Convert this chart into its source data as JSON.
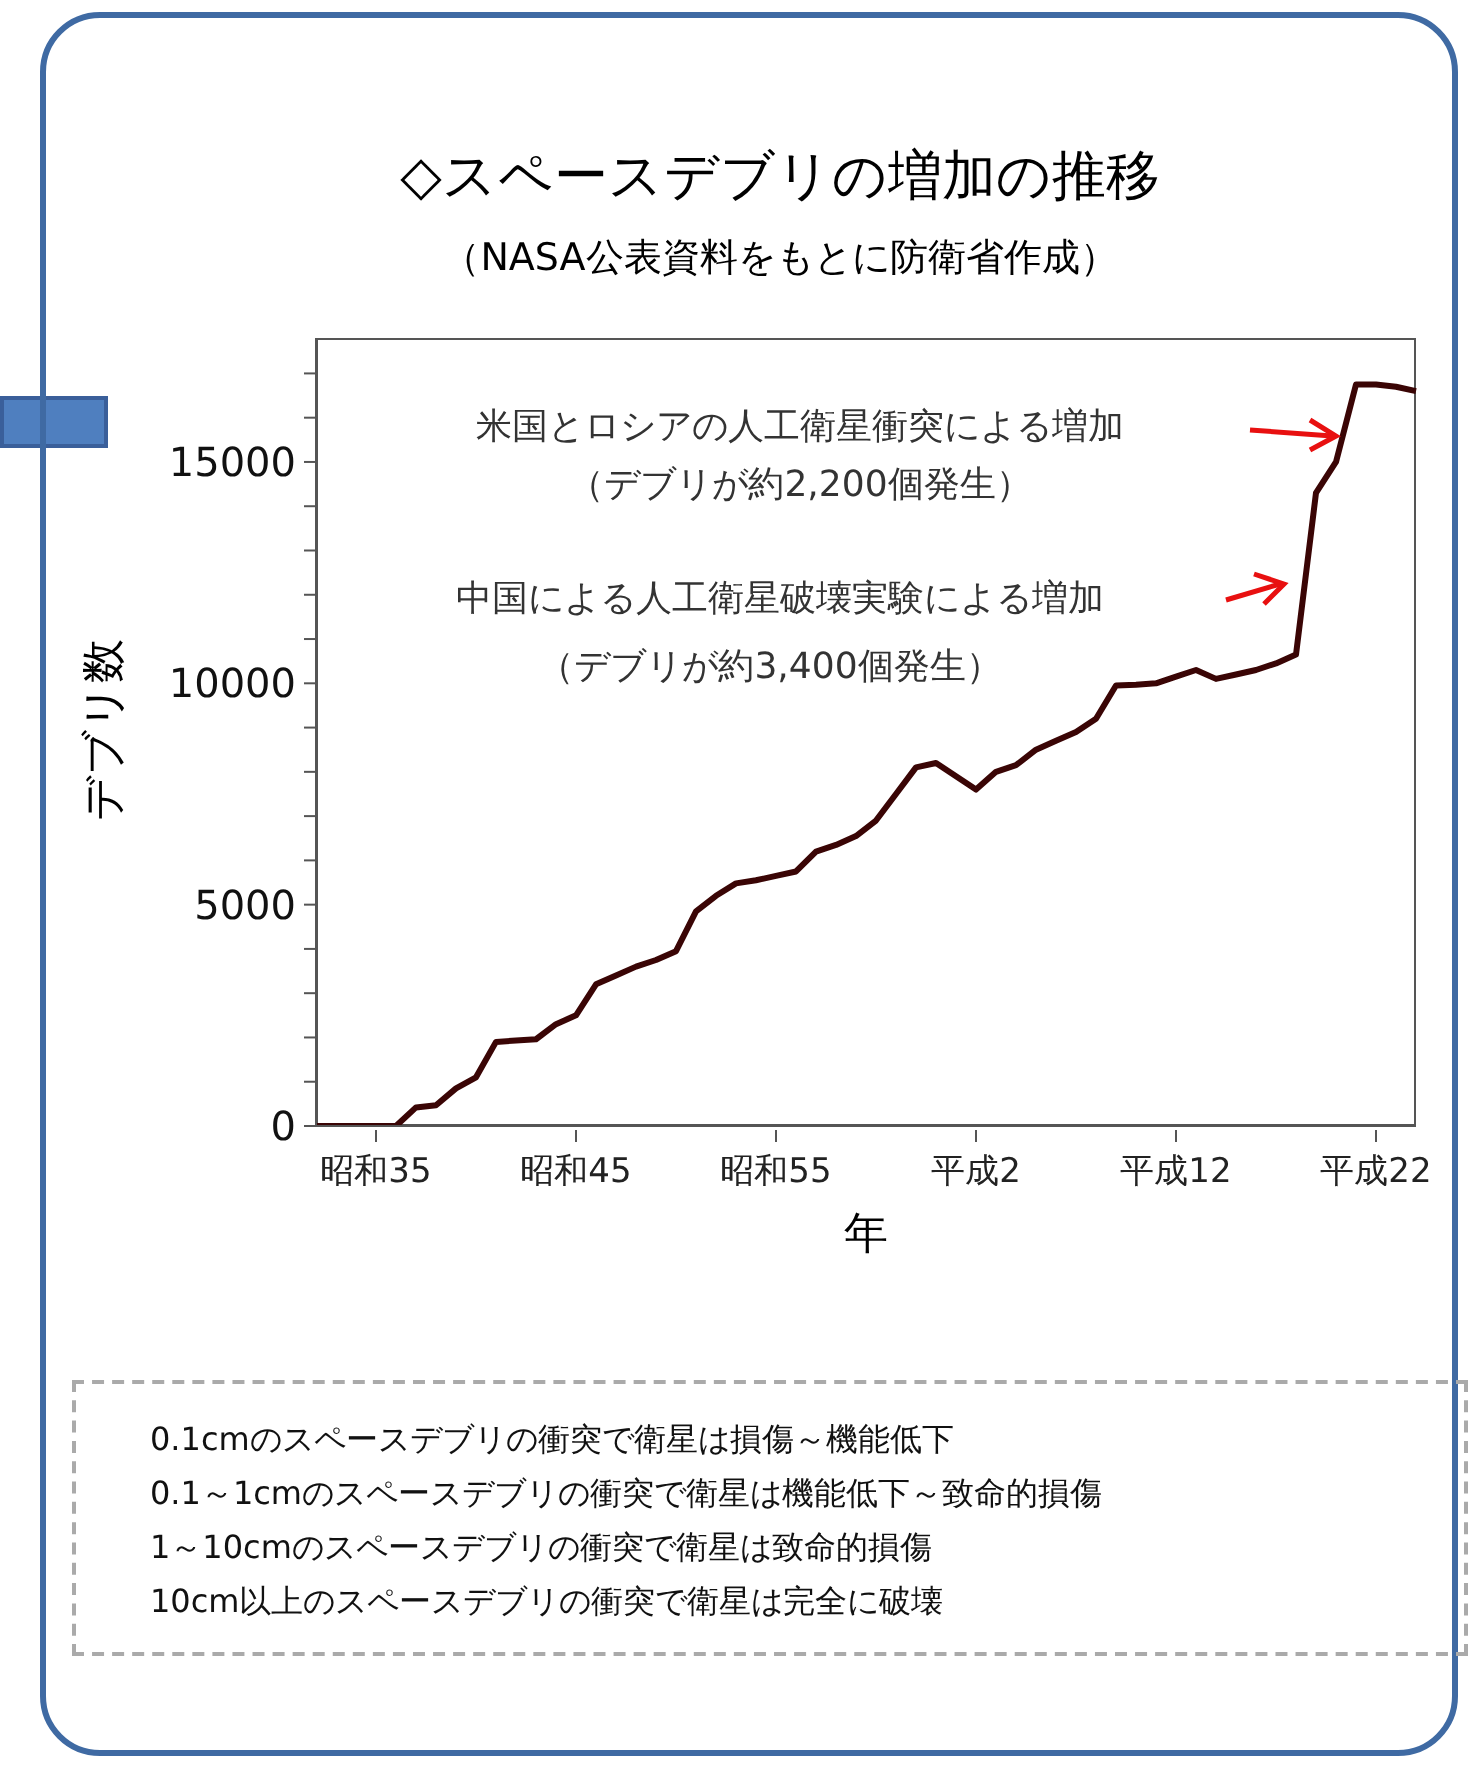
{
  "chart_data": {
    "type": "line",
    "title": "◇スペースデブリの増加の推移",
    "subtitle": "（NASA公表資料をもとに防衛省作成）",
    "xlabel": "年",
    "ylabel": "デブリ数",
    "categories": [
      null,
      null,
      null,
      "昭和35",
      null,
      null,
      null,
      null,
      null,
      null,
      null,
      null,
      null,
      "昭和45",
      null,
      null,
      null,
      null,
      null,
      null,
      null,
      null,
      null,
      "昭和55",
      null,
      null,
      null,
      null,
      null,
      null,
      null,
      null,
      null,
      "平成2",
      null,
      null,
      null,
      null,
      null,
      null,
      null,
      null,
      null,
      "平成12",
      null,
      null,
      null,
      null,
      null,
      null,
      null,
      null,
      null,
      "平成22",
      null,
      null
    ],
    "ylim": [
      0,
      17800
    ],
    "yticks": [
      0,
      {
        "value": 1000,
        "label": null
      },
      {
        "value": 2000,
        "label": null
      },
      {
        "value": 3000,
        "label": null
      },
      {
        "value": 4000,
        "label": null
      },
      5000,
      {
        "value": 6000,
        "label": null
      },
      {
        "value": 7000,
        "label": null
      },
      {
        "value": 8000,
        "label": null
      },
      {
        "value": 9000,
        "label": null
      },
      10000,
      {
        "value": 11000,
        "label": null
      },
      {
        "value": 12000,
        "label": null
      },
      {
        "value": 13000,
        "label": null
      },
      {
        "value": 14000,
        "label": null
      },
      15000,
      {
        "value": 16000,
        "label": null
      },
      {
        "value": 17000,
        "label": null
      }
    ],
    "grid": false,
    "legend": false,
    "marker": "none",
    "line_style": "solid",
    "series": [
      {
        "color": "#3a0505",
        "values": [
          0,
          0,
          0,
          0,
          0,
          420,
          470,
          850,
          1100,
          1900,
          1930,
          1960,
          2300,
          2500,
          3200,
          3400,
          3600,
          3750,
          3950,
          4850,
          5200,
          5480,
          5550,
          5650,
          5750,
          6200,
          6350,
          6550,
          6900,
          7500,
          8100,
          8200,
          7900,
          7600,
          8000,
          8150,
          8500,
          8700,
          8900,
          9200,
          9950,
          9970,
          10000,
          10150,
          10300,
          10100,
          10200,
          10300,
          10450,
          10650,
          14300,
          15000,
          16750,
          16750,
          16700,
          16600
        ]
      }
    ],
    "annotations": [
      "米国とロシアの人工衛星衝突による増加",
      "（デブリが約2,200個発生）",
      "中国による人工衛星破壊実験による増加",
      "（デブリが約3,400個発生）",
      "0.1cmのスペースデブリの衝突で衛星は損傷～機能低下",
      "0.1～1cmのスペースデブリの衝突で衛星は機能低下～致命的損傷",
      "1～10cmのスペースデブリの衝突で衛星は致命的損傷",
      "10cm以上のスペースデブリの衝突で衛星は完全に破壊"
    ]
  }
}
